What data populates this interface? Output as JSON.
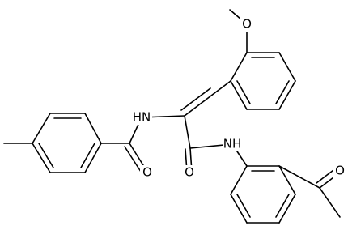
{
  "atom_labels": [
    "O",
    "HN",
    "O",
    "O",
    "NH",
    "O"
  ]
}
